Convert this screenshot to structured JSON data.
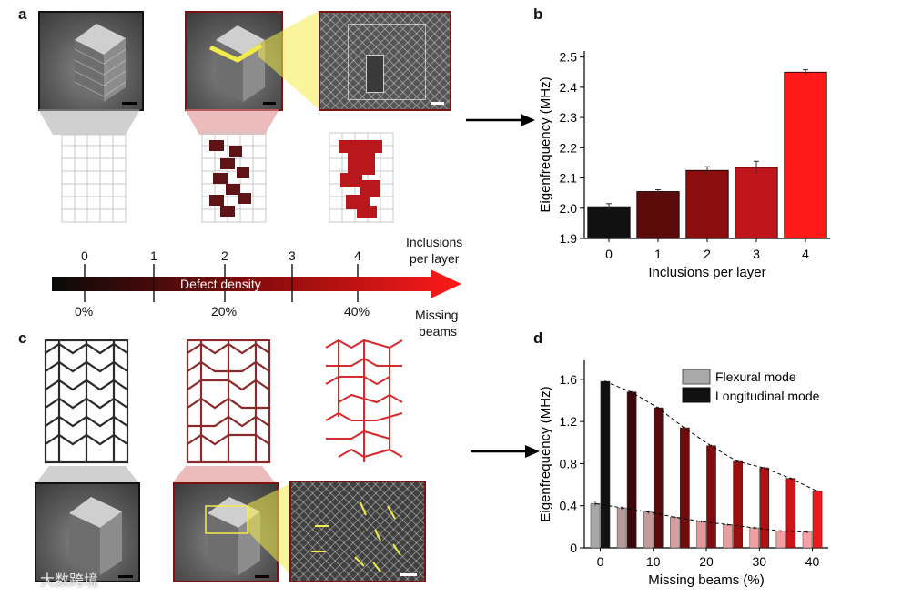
{
  "panels": {
    "a": "a",
    "b": "b",
    "c": "c",
    "d": "d"
  },
  "scale": {
    "ticks": [
      "0",
      "1",
      "2",
      "3",
      "4"
    ],
    "bottom_ticks": [
      "0%",
      "20%",
      "40%"
    ],
    "arrow_label": "Defect density",
    "right_top_label": [
      "Inclusions",
      "per layer"
    ],
    "right_bottom_label": [
      "Missing",
      "beams"
    ]
  },
  "watermark": "大数跨境",
  "colors": {
    "black": "#111111",
    "dark_red": "#5c0b0b",
    "mid_red": "#8b0d0d",
    "red": "#c0151a",
    "bright_red": "#ff1a1a",
    "frame_red": "#7a1414",
    "highlight_yellow": "#f2ec4a"
  },
  "chart_data": [
    {
      "id": "b",
      "type": "bar",
      "title": "",
      "xlabel": "Inclusions per layer",
      "ylabel": "Eigenfrequency (MHz)",
      "categories": [
        "0",
        "1",
        "2",
        "3",
        "4"
      ],
      "values": [
        2.005,
        2.055,
        2.125,
        2.135,
        2.45
      ],
      "errors": [
        0.01,
        0.006,
        0.012,
        0.02,
        0.008
      ],
      "colors": [
        "#111111",
        "#5c0b0b",
        "#8b0d0d",
        "#c0151a",
        "#ff1a1a"
      ],
      "ylim": [
        1.9,
        2.52
      ],
      "yticks": [
        "1.9",
        "2.0",
        "2.1",
        "2.2",
        "2.3",
        "2.4",
        "2.5"
      ],
      "ytick_values": [
        1.9,
        2.0,
        2.1,
        2.2,
        2.3,
        2.4,
        2.5
      ]
    },
    {
      "id": "d",
      "type": "bar",
      "title": "",
      "xlabel": "Missing beams (%)",
      "ylabel": "Eigenfrequency (MHz)",
      "x": [
        0,
        5,
        10,
        15,
        20,
        25,
        30,
        35,
        40
      ],
      "xticks": [
        "0",
        "10",
        "20",
        "30",
        "40"
      ],
      "xtick_values": [
        0,
        10,
        20,
        30,
        40
      ],
      "xlim": [
        -3,
        43
      ],
      "ylim": [
        0,
        1.78
      ],
      "yticks": [
        "0",
        "0.4",
        "0.8",
        "1.2",
        "1.6"
      ],
      "ytick_values": [
        0,
        0.4,
        0.8,
        1.2,
        1.6
      ],
      "legend": [
        "Flexural mode",
        "Longitudinal mode"
      ],
      "series": [
        {
          "name": "Flexural mode",
          "values": [
            0.42,
            0.38,
            0.34,
            0.29,
            0.25,
            0.22,
            0.19,
            0.16,
            0.15
          ],
          "errors": [
            0.02,
            0.015,
            0.015,
            0.01,
            0.01,
            0.01,
            0.01,
            0.01,
            0.01
          ],
          "colors": [
            "#a8a8a8",
            "#b79a9a",
            "#c49a9a",
            "#d79ea0",
            "#df9a9c",
            "#e89ea0",
            "#ef9ea2",
            "#f59ea2",
            "#f6a0a4"
          ]
        },
        {
          "name": "Longitudinal mode",
          "values": [
            1.58,
            1.48,
            1.33,
            1.14,
            0.97,
            0.82,
            0.76,
            0.66,
            0.54
          ],
          "errors": [
            0.01,
            0.01,
            0.01,
            0.01,
            0.01,
            0.01,
            0.01,
            0.01,
            0.01
          ],
          "colors": [
            "#111111",
            "#3e0707",
            "#5a0a0a",
            "#6e0b0b",
            "#850c0c",
            "#990f10",
            "#b01214",
            "#cc1518",
            "#f01a1e"
          ]
        }
      ]
    }
  ]
}
